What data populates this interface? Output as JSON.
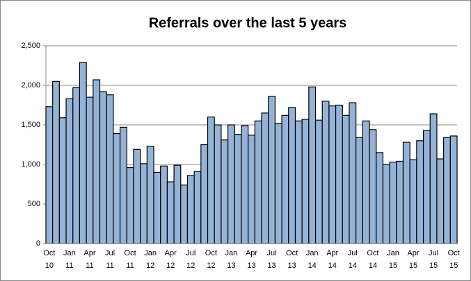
{
  "chart_data": {
    "type": "bar",
    "title": "Referrals over the last 5 years",
    "categories": [
      "Oct 10",
      null,
      null,
      "Jan 11",
      null,
      null,
      "Apr 11",
      null,
      null,
      "Jul 11",
      null,
      null,
      "Oct 11",
      null,
      null,
      "Jan 12",
      null,
      null,
      "Apr 12",
      null,
      null,
      "Jul 12",
      null,
      null,
      "Oct 12",
      null,
      null,
      "Jan 13",
      null,
      null,
      "Apr 13",
      null,
      null,
      "Jul 13",
      null,
      null,
      "Oct 13",
      null,
      null,
      "Jan 14",
      null,
      null,
      "Apr 14",
      null,
      null,
      "Jul 14",
      null,
      null,
      "Oct 14",
      null,
      null,
      "Jan 15",
      null,
      null,
      "Apr 15",
      null,
      null,
      "Jul 15",
      null,
      null,
      "Oct 15"
    ],
    "values": [
      1730,
      2050,
      1590,
      1830,
      1970,
      2290,
      1850,
      2070,
      1920,
      1880,
      1390,
      1470,
      960,
      1190,
      1010,
      1230,
      900,
      980,
      780,
      990,
      740,
      860,
      910,
      1250,
      1600,
      1500,
      1310,
      1500,
      1380,
      1490,
      1370,
      1550,
      1650,
      1860,
      1520,
      1620,
      1720,
      1550,
      1570,
      1980,
      1560,
      1800,
      1740,
      1750,
      1620,
      1780,
      1340,
      1550,
      1440,
      1150,
      1000,
      1030,
      1040,
      1280,
      1060,
      1300,
      1430,
      1640,
      1070,
      1340,
      1360
    ],
    "color": "#95b3d7",
    "ylim": [
      0,
      2500
    ],
    "yticks": [
      0,
      {
        "value": 500,
        "label": "500"
      },
      {
        "value": 1000,
        "label": "1,000"
      },
      {
        "value": 1500,
        "label": "1,500"
      },
      {
        "value": 2000,
        "label": "2,000"
      },
      {
        "value": 2500,
        "label": "2,500"
      }
    ],
    "grid": true
  }
}
